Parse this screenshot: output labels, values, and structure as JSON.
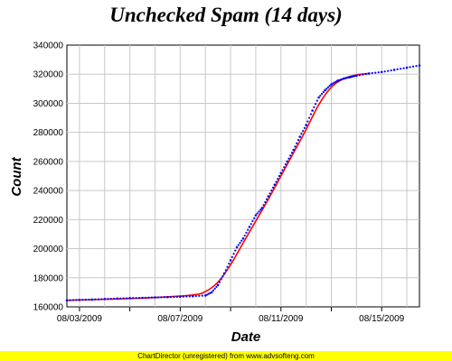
{
  "chart_data": {
    "type": "line",
    "title": "Unchecked Spam (14 days)",
    "xlabel": "Date",
    "ylabel": "Count",
    "ylim": [
      160000,
      340000
    ],
    "xlim": [
      "2009-08-02T12:00",
      "2009-08-16T12:00"
    ],
    "yticks": [
      160000,
      180000,
      200000,
      220000,
      240000,
      260000,
      280000,
      300000,
      320000,
      340000
    ],
    "xtick_labels": [
      "08/03/2009",
      "08/07/2009",
      "08/11/2009",
      "08/15/2009"
    ],
    "grid": true,
    "series": [
      {
        "style": "dots",
        "color": "#0000ff",
        "x": [
          "2009-08-02 12:00",
          "2009-08-03 00:00",
          "2009-08-03 12:00",
          "2009-08-04 00:00",
          "2009-08-04 12:00",
          "2009-08-05 00:00",
          "2009-08-05 12:00",
          "2009-08-06 00:00",
          "2009-08-06 12:00",
          "2009-08-07 00:00",
          "2009-08-07 12:00",
          "2009-08-08 00:00",
          "2009-08-08 06:00",
          "2009-08-08 12:00",
          "2009-08-08 18:00",
          "2009-08-09 00:00",
          "2009-08-09 06:00",
          "2009-08-09 12:00",
          "2009-08-09 18:00",
          "2009-08-10 00:00",
          "2009-08-10 06:00",
          "2009-08-10 12:00",
          "2009-08-10 18:00",
          "2009-08-11 00:00",
          "2009-08-11 06:00",
          "2009-08-11 12:00",
          "2009-08-11 18:00",
          "2009-08-12 00:00",
          "2009-08-12 06:00",
          "2009-08-12 12:00",
          "2009-08-12 18:00",
          "2009-08-13 00:00",
          "2009-08-13 06:00",
          "2009-08-13 12:00",
          "2009-08-13 18:00",
          "2009-08-14 00:00",
          "2009-08-14 12:00",
          "2009-08-15 00:00",
          "2009-08-15 12:00",
          "2009-08-16 00:00",
          "2009-08-16 12:00"
        ],
        "y": [
          164500,
          164800,
          165000,
          165400,
          165700,
          166000,
          166200,
          166500,
          166700,
          167000,
          167300,
          167800,
          170000,
          175000,
          183000,
          192000,
          201000,
          207000,
          215000,
          223000,
          228000,
          236000,
          244000,
          252000,
          260000,
          268000,
          277000,
          285000,
          295000,
          304000,
          309000,
          313000,
          315500,
          317000,
          318000,
          319000,
          320500,
          321500,
          323000,
          324500,
          326000
        ]
      },
      {
        "style": "line",
        "color": "#ff0000",
        "x": [
          "2009-08-02 12:00",
          "2009-08-04 00:00",
          "2009-08-06 00:00",
          "2009-08-07 12:00",
          "2009-08-08 00:00",
          "2009-08-08 12:00",
          "2009-08-09 00:00",
          "2009-08-09 12:00",
          "2009-08-10 00:00",
          "2009-08-10 12:00",
          "2009-08-11 00:00",
          "2009-08-11 12:00",
          "2009-08-12 00:00",
          "2009-08-12 12:00",
          "2009-08-13 00:00",
          "2009-08-13 12:00",
          "2009-08-14 00:00",
          "2009-08-14 12:00"
        ],
        "y": [
          164500,
          165200,
          166400,
          168200,
          170500,
          177000,
          189000,
          204000,
          219000,
          234000,
          250000,
          266000,
          282000,
          299000,
          311000,
          317000,
          319500,
          320500
        ]
      }
    ]
  },
  "footer": {
    "text": "ChartDirector (unregistered) from www.advsofteng.com",
    "background": "#ffff00"
  }
}
